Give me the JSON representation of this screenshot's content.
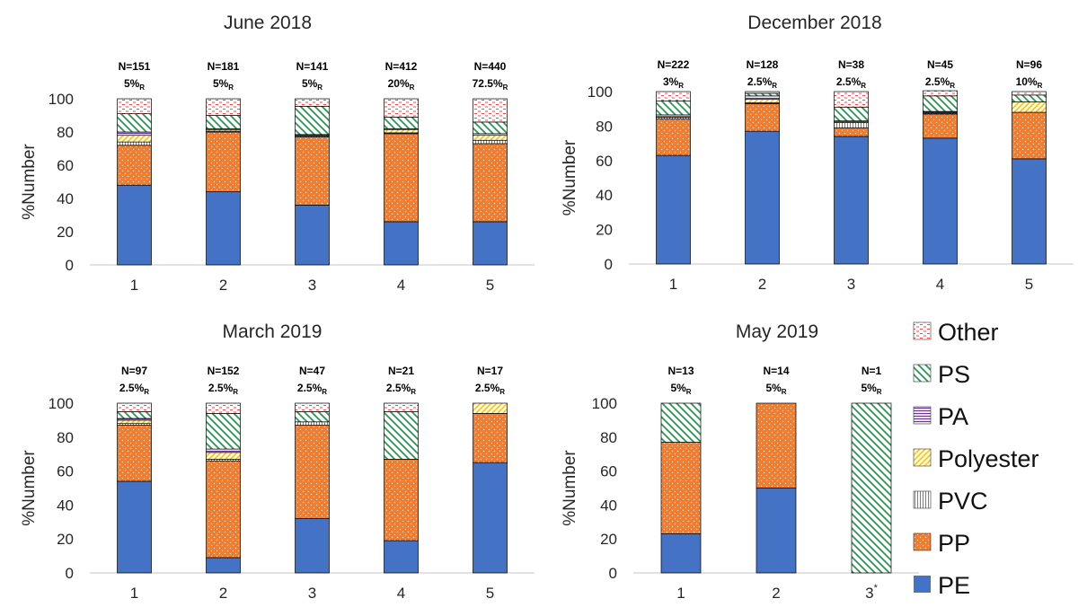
{
  "colors": {
    "PE": "#4472C4",
    "PP": "#ED7D31",
    "PVC": "#7F7F7F",
    "Polyester": "#FFC000",
    "PA": "#7030A0",
    "PS": "#1E9E4E",
    "Other": "#E8494B",
    "axis": "#D0D0D0",
    "text": "#262626"
  },
  "legend": [
    "Other",
    "PS",
    "PA",
    "Polyester",
    "PVC",
    "PP",
    "PE"
  ],
  "stack_order": [
    "PE",
    "PP",
    "PVC",
    "Polyester",
    "PA",
    "PS",
    "Other"
  ],
  "chart_data": [
    {
      "type": "bar",
      "stacked": true,
      "title": "June 2018",
      "ylabel": "%Number",
      "ylim": [
        0,
        100
      ],
      "yticks": [
        0,
        20,
        40,
        60,
        80,
        100
      ],
      "categories": [
        "1",
        "2",
        "3",
        "4",
        "5"
      ],
      "annotations": [
        {
          "n": "N=151",
          "pct": "5%",
          "sub": "R"
        },
        {
          "n": "N=181",
          "pct": "5%",
          "sub": "R"
        },
        {
          "n": "N=141",
          "pct": "5%",
          "sub": "R"
        },
        {
          "n": "N=412",
          "pct": "20%",
          "sub": "R"
        },
        {
          "n": "N=440",
          "pct": "72.5%",
          "sub": "R"
        }
      ],
      "series": [
        {
          "name": "PE",
          "values": [
            48,
            44,
            36,
            26,
            26
          ]
        },
        {
          "name": "PP",
          "values": [
            24,
            36,
            41,
            53,
            47
          ]
        },
        {
          "name": "PVC",
          "values": [
            2,
            0.5,
            0.5,
            0.5,
            2
          ]
        },
        {
          "name": "Polyester",
          "values": [
            4,
            1,
            0.5,
            2,
            3
          ]
        },
        {
          "name": "PA",
          "values": [
            2,
            0.5,
            0.5,
            0.5,
            1
          ]
        },
        {
          "name": "PS",
          "values": [
            11,
            8,
            17,
            7,
            7
          ]
        },
        {
          "name": "Other",
          "values": [
            9,
            10,
            4.5,
            11,
            14
          ]
        }
      ]
    },
    {
      "type": "bar",
      "stacked": true,
      "title": "December 2018",
      "ylabel": "%Number",
      "ylim": [
        0,
        100
      ],
      "yticks": [
        0,
        20,
        40,
        60,
        80,
        100
      ],
      "categories": [
        "1",
        "2",
        "3",
        "4",
        "5"
      ],
      "annotations": [
        {
          "n": "N=222",
          "pct": "3%",
          "sub": "R"
        },
        {
          "n": "N=128",
          "pct": "2.5%",
          "sub": "R"
        },
        {
          "n": "N=38",
          "pct": "2.5%",
          "sub": "R"
        },
        {
          "n": "N=45",
          "pct": "2.5%",
          "sub": "R"
        },
        {
          "n": "N=96",
          "pct": "10%",
          "sub": "R"
        }
      ],
      "series": [
        {
          "name": "PE",
          "values": [
            63,
            77,
            74,
            73,
            61
          ]
        },
        {
          "name": "PP",
          "values": [
            21,
            16,
            5,
            14,
            27
          ]
        },
        {
          "name": "PVC",
          "values": [
            1,
            0.5,
            3,
            0.5,
            0
          ]
        },
        {
          "name": "Polyester",
          "values": [
            0.5,
            2,
            0.5,
            0.5,
            6
          ]
        },
        {
          "name": "PA",
          "values": [
            1,
            2,
            0.5,
            0.5,
            0
          ]
        },
        {
          "name": "PS",
          "values": [
            8,
            1.5,
            8,
            9,
            4
          ]
        },
        {
          "name": "Other",
          "values": [
            5.5,
            1,
            9,
            3,
            2
          ]
        }
      ]
    },
    {
      "type": "bar",
      "stacked": true,
      "title": "March 2019",
      "ylabel": "%Number",
      "ylim": [
        0,
        100
      ],
      "yticks": [
        0,
        20,
        40,
        60,
        80,
        100
      ],
      "categories": [
        "1",
        "2",
        "3",
        "4",
        "5"
      ],
      "annotations": [
        {
          "n": "N=97",
          "pct": "2.5%",
          "sub": "R"
        },
        {
          "n": "N=152",
          "pct": "2.5%",
          "sub": "R"
        },
        {
          "n": "N=47",
          "pct": "2.5%",
          "sub": "R"
        },
        {
          "n": "N=21",
          "pct": "2.5%",
          "sub": "R"
        },
        {
          "n": "N=17",
          "pct": "2.5%",
          "sub": "R"
        }
      ],
      "series": [
        {
          "name": "PE",
          "values": [
            54,
            9,
            32,
            19,
            65
          ]
        },
        {
          "name": "PP",
          "values": [
            33,
            57,
            55,
            48,
            29
          ]
        },
        {
          "name": "PVC",
          "values": [
            1,
            1,
            2,
            0,
            0
          ]
        },
        {
          "name": "Polyester",
          "values": [
            2,
            4,
            0,
            0,
            6
          ]
        },
        {
          "name": "PA",
          "values": [
            1,
            2,
            0,
            0,
            0
          ]
        },
        {
          "name": "PS",
          "values": [
            4,
            21,
            6,
            28,
            0
          ]
        },
        {
          "name": "Other",
          "values": [
            5,
            6,
            5,
            5,
            0
          ]
        }
      ]
    },
    {
      "type": "bar",
      "stacked": true,
      "title": "May 2019",
      "ylabel": "%Number",
      "ylim": [
        0,
        100
      ],
      "yticks": [
        0,
        20,
        40,
        60,
        80,
        100
      ],
      "categories": [
        "1",
        "2",
        "3*"
      ],
      "annotations": [
        {
          "n": "N=13",
          "pct": "5%",
          "sub": "R"
        },
        {
          "n": "N=14",
          "pct": "5%",
          "sub": "R"
        },
        {
          "n": "N=1",
          "pct": "5%",
          "sub": "R"
        }
      ],
      "series": [
        {
          "name": "PE",
          "values": [
            23,
            50,
            0
          ]
        },
        {
          "name": "PP",
          "values": [
            54,
            50,
            0
          ]
        },
        {
          "name": "PVC",
          "values": [
            0,
            0,
            0
          ]
        },
        {
          "name": "Polyester",
          "values": [
            0,
            0,
            0
          ]
        },
        {
          "name": "PA",
          "values": [
            0,
            0,
            0
          ]
        },
        {
          "name": "PS",
          "values": [
            23,
            0,
            100
          ]
        },
        {
          "name": "Other",
          "values": [
            0,
            0,
            0
          ]
        }
      ]
    }
  ]
}
